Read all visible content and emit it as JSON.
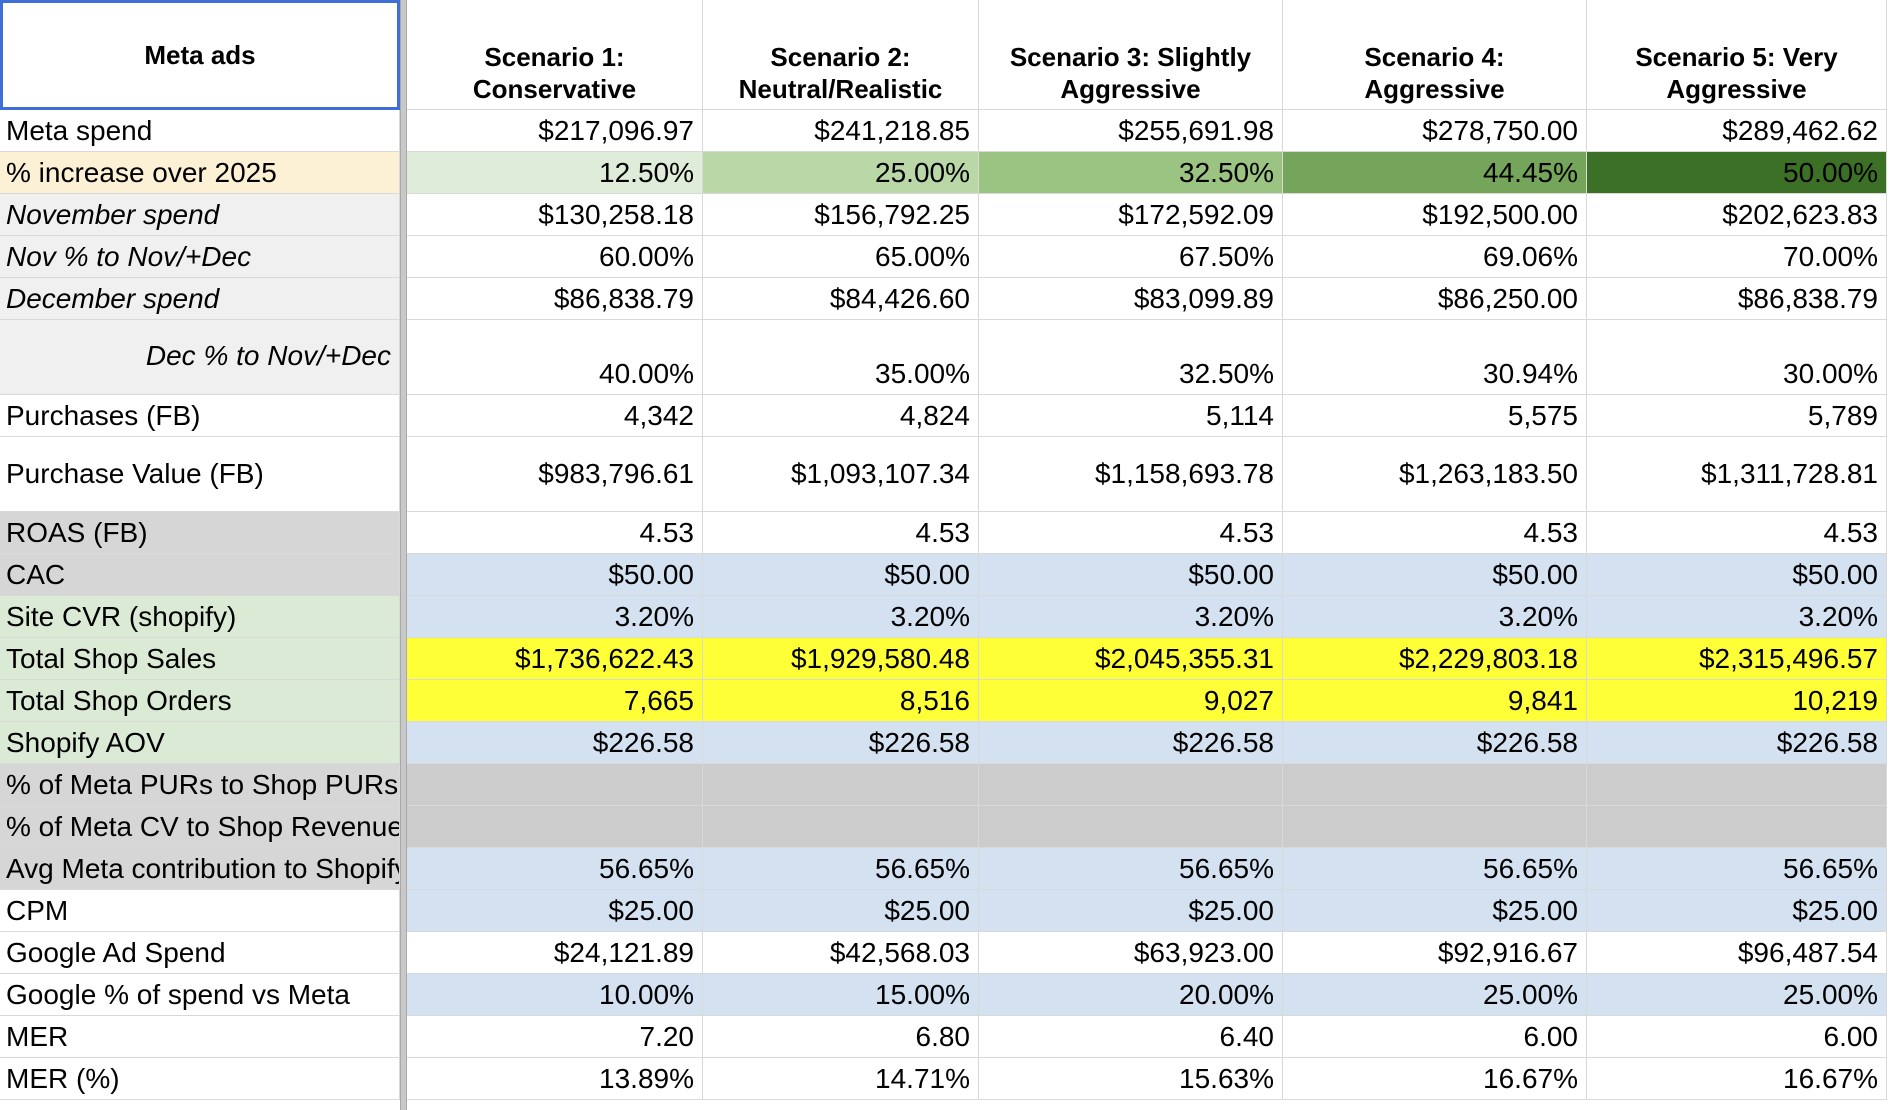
{
  "colors": {
    "highlight_yellow": "#ffff38",
    "input_blue": "#d3e1f1",
    "label_green": "#dbead5",
    "label_gray": "#d6d6d6",
    "label_light_gray": "#f0f0f0",
    "label_peach": "#fdf1d5",
    "gray_row": "#cccccc",
    "selection_border": "#3d6fd6",
    "green_1": "#dfecd9",
    "green_2": "#bad7a8",
    "green_3": "#9bc381",
    "green_4": "#75a55a",
    "green_5": "#3c7026"
  },
  "corner_label": "Meta ads",
  "headers": [
    [
      "Scenario 1:",
      "Conservative"
    ],
    [
      "Scenario 2:",
      "Neutral/Realistic"
    ],
    [
      "Scenario 3: Slightly",
      "Aggressive"
    ],
    [
      "Scenario 4:",
      "Aggressive"
    ],
    [
      "Scenario 5: Very",
      "Aggressive"
    ]
  ],
  "rows": [
    {
      "label": "Meta spend",
      "values": [
        "$217,096.97",
        "$241,218.85",
        "$255,691.98",
        "$278,750.00",
        "$289,462.62"
      ]
    },
    {
      "label": "% increase over 2025",
      "values": [
        "12.50%",
        "25.00%",
        "32.50%",
        "44.45%",
        "50.00%"
      ]
    },
    {
      "label": "November spend",
      "values": [
        "$130,258.18",
        "$156,792.25",
        "$172,592.09",
        "$192,500.00",
        "$202,623.83"
      ]
    },
    {
      "label": "Nov % to Nov/+Dec",
      "values": [
        "60.00%",
        "65.00%",
        "67.50%",
        "69.06%",
        "70.00%"
      ]
    },
    {
      "label": "December spend",
      "values": [
        "$86,838.79",
        "$84,426.60",
        "$83,099.89",
        "$86,250.00",
        "$86,838.79"
      ]
    },
    {
      "label": "Dec % to Nov/+Dec",
      "values": [
        "40.00%",
        "35.00%",
        "32.50%",
        "30.94%",
        "30.00%"
      ]
    },
    {
      "label": "Purchases (FB)",
      "values": [
        "4,342",
        "4,824",
        "5,114",
        "5,575",
        "5,789"
      ]
    },
    {
      "label": "Purchase Value (FB)",
      "values": [
        "$983,796.61",
        "$1,093,107.34",
        "$1,158,693.78",
        "$1,263,183.50",
        "$1,311,728.81"
      ]
    },
    {
      "label": "ROAS (FB)",
      "values": [
        "4.53",
        "4.53",
        "4.53",
        "4.53",
        "4.53"
      ]
    },
    {
      "label": "CAC",
      "values": [
        "$50.00",
        "$50.00",
        "$50.00",
        "$50.00",
        "$50.00"
      ]
    },
    {
      "label": "Site CVR (shopify)",
      "values": [
        "3.20%",
        "3.20%",
        "3.20%",
        "3.20%",
        "3.20%"
      ]
    },
    {
      "label": "Total Shop Sales",
      "values": [
        "$1,736,622.43",
        "$1,929,580.48",
        "$2,045,355.31",
        "$2,229,803.18",
        "$2,315,496.57"
      ]
    },
    {
      "label": "Total Shop Orders",
      "values": [
        "7,665",
        "8,516",
        "9,027",
        "9,841",
        "10,219"
      ]
    },
    {
      "label": "Shopify AOV",
      "values": [
        "$226.58",
        "$226.58",
        "$226.58",
        "$226.58",
        "$226.58"
      ]
    },
    {
      "label": "% of Meta PURs to Shop PURs",
      "values": [
        "",
        "",
        "",
        "",
        ""
      ]
    },
    {
      "label": "% of Meta CV to Shop Revenue",
      "values": [
        "",
        "",
        "",
        "",
        ""
      ]
    },
    {
      "label": "Avg Meta contribution to Shopify",
      "values": [
        "56.65%",
        "56.65%",
        "56.65%",
        "56.65%",
        "56.65%"
      ]
    },
    {
      "label": "CPM",
      "values": [
        "$25.00",
        "$25.00",
        "$25.00",
        "$25.00",
        "$25.00"
      ]
    },
    {
      "label": "Google Ad Spend",
      "values": [
        "$24,121.89",
        "$42,568.03",
        "$63,923.00",
        "$92,916.67",
        "$96,487.54"
      ]
    },
    {
      "label": "Google % of spend vs Meta",
      "values": [
        "10.00%",
        "15.00%",
        "20.00%",
        "25.00%",
        "25.00%"
      ]
    },
    {
      "label": "MER",
      "values": [
        "7.20",
        "6.80",
        "6.40",
        "6.00",
        "6.00"
      ]
    },
    {
      "label": "MER (%)",
      "values": [
        "13.89%",
        "14.71%",
        "15.63%",
        "16.67%",
        "16.67%"
      ]
    }
  ]
}
